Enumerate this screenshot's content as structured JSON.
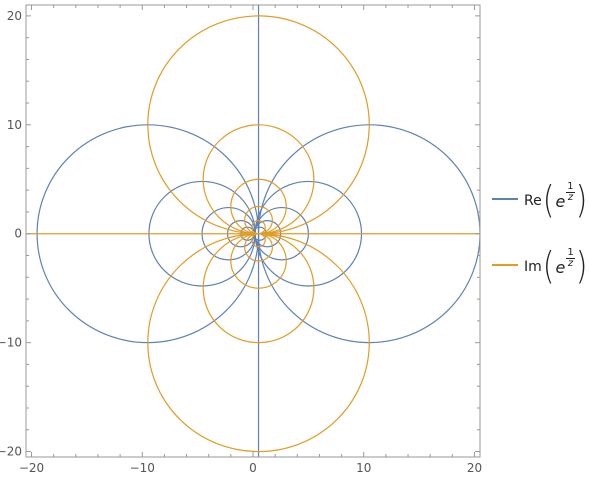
{
  "chart_data": {
    "type": "contour",
    "function": "exp(1/z)",
    "xlim": [
      -20.5,
      20.5
    ],
    "ylim": [
      -20.5,
      21
    ],
    "xticks": [
      -20,
      -10,
      0,
      10,
      20
    ],
    "yticks": [
      -20,
      -10,
      0,
      10,
      20
    ],
    "x_tick_labels": [
      "−20",
      "−10",
      "0",
      "10",
      "20"
    ],
    "y_tick_labels": [
      "−20",
      "−10",
      "0",
      "10",
      "20"
    ],
    "frame": true,
    "series": [
      {
        "name": "Re(e^(1/z))",
        "color": "#5e81b5",
        "axis_line": "vertical",
        "circles": [
          {
            "center_x": 10.5,
            "center_y": 0,
            "radius": 10
          },
          {
            "center_x": 5,
            "center_y": 0,
            "radius": 4.8
          },
          {
            "center_x": 2.6,
            "center_y": 0,
            "radius": 2.4
          },
          {
            "center_x": 1.3,
            "center_y": 0,
            "radius": 1.2
          },
          {
            "center_x": 0.6,
            "center_y": 0,
            "radius": 0.6
          },
          {
            "center_x": -9.5,
            "center_y": 0,
            "radius": 10
          },
          {
            "center_x": -4.6,
            "center_y": 0,
            "radius": 4.8
          },
          {
            "center_x": -2.2,
            "center_y": 0,
            "radius": 2.4
          },
          {
            "center_x": -1.1,
            "center_y": 0,
            "radius": 1.2
          },
          {
            "center_x": -0.5,
            "center_y": 0,
            "radius": 0.6
          }
        ]
      },
      {
        "name": "Im(e^(1/z))",
        "color": "#e19c24",
        "axis_line": "horizontal",
        "circles": [
          {
            "center_x": 0.5,
            "center_y": 10,
            "radius": 10
          },
          {
            "center_x": 0.5,
            "center_y": 5,
            "radius": 5
          },
          {
            "center_x": 0.5,
            "center_y": 2.5,
            "radius": 2.5
          },
          {
            "center_x": 0.5,
            "center_y": 1.25,
            "radius": 1.25
          },
          {
            "center_x": 0.5,
            "center_y": 0.6,
            "radius": 0.6
          },
          {
            "center_x": 0.5,
            "center_y": -10,
            "radius": 10
          },
          {
            "center_x": 0.5,
            "center_y": -5,
            "radius": 5
          },
          {
            "center_x": 0.5,
            "center_y": -2.5,
            "radius": 2.5
          },
          {
            "center_x": 0.5,
            "center_y": -1.25,
            "radius": 1.25
          },
          {
            "center_x": 0.5,
            "center_y": -0.6,
            "radius": 0.6
          }
        ]
      }
    ],
    "legend": {
      "placement": "right",
      "items": [
        {
          "prefix": "Re",
          "base": "e",
          "num": "1",
          "den": "z",
          "color": "#5e81b5"
        },
        {
          "prefix": "Im",
          "base": "e",
          "num": "1",
          "den": "z",
          "color": "#e19c24"
        }
      ]
    }
  }
}
